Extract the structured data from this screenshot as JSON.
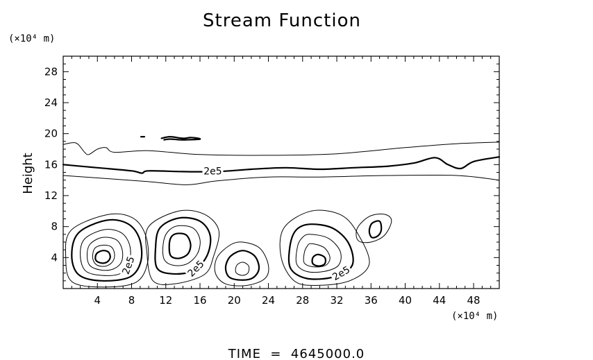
{
  "chart_data": {
    "type": "contour",
    "title": "Stream Function",
    "ylabel": "Height",
    "y_unit": "(×10⁴ m)",
    "x_unit": "(×10⁴ m)",
    "xlim": [
      0,
      51
    ],
    "ylim": [
      0,
      30
    ],
    "x_ticks": [
      4,
      8,
      12,
      16,
      20,
      24,
      28,
      32,
      36,
      40,
      44,
      48
    ],
    "y_ticks": [
      4,
      8,
      12,
      16,
      20,
      24,
      28
    ],
    "contour_label": "2e5",
    "footer": "TIME  =  4645000.0",
    "contours": [
      {
        "id": "upper-thin",
        "weight": "thin",
        "closed": false,
        "points": [
          [
            0,
            18.6
          ],
          [
            1.5,
            18.8
          ],
          [
            2.5,
            17.6
          ],
          [
            3,
            17.3
          ],
          [
            4,
            18
          ],
          [
            5,
            18.2
          ],
          [
            6,
            17.6
          ],
          [
            10,
            17.8
          ],
          [
            16,
            17.3
          ],
          [
            24,
            17.2
          ],
          [
            32,
            17.4
          ],
          [
            40,
            18.2
          ],
          [
            46,
            18.7
          ],
          [
            51,
            18.9
          ]
        ]
      },
      {
        "id": "main-thick",
        "weight": "thick",
        "closed": false,
        "points": [
          [
            0,
            16
          ],
          [
            4,
            15.6
          ],
          [
            8,
            15.2
          ],
          [
            9.2,
            14.9
          ],
          [
            10,
            15.2
          ],
          [
            14,
            15.1
          ],
          [
            18,
            15.1
          ],
          [
            22,
            15.4
          ],
          [
            26,
            15.6
          ],
          [
            30,
            15.4
          ],
          [
            34,
            15.6
          ],
          [
            38,
            15.8
          ],
          [
            41,
            16.2
          ],
          [
            43.5,
            16.9
          ],
          [
            45,
            16
          ],
          [
            46.5,
            15.5
          ],
          [
            48,
            16.4
          ],
          [
            51,
            17
          ]
        ]
      },
      {
        "id": "lower-thin",
        "weight": "thin",
        "closed": false,
        "points": [
          [
            0,
            14.6
          ],
          [
            5,
            14.2
          ],
          [
            10,
            13.8
          ],
          [
            14.5,
            13.4
          ],
          [
            18,
            13.9
          ],
          [
            24,
            14.4
          ],
          [
            30,
            14.4
          ],
          [
            38,
            14.6
          ],
          [
            46,
            14.6
          ],
          [
            51,
            14
          ]
        ]
      },
      {
        "id": "patch-20",
        "weight": "thick",
        "closed": false,
        "points": [
          [
            11.5,
            19.4
          ],
          [
            12.5,
            19.6
          ],
          [
            14,
            19.4
          ],
          [
            15,
            19.5
          ],
          [
            16,
            19.3
          ],
          [
            14,
            19.2
          ],
          [
            12.5,
            19.3
          ],
          [
            11.8,
            19.2
          ]
        ]
      },
      {
        "id": "dot-20",
        "weight": "thick",
        "closed": false,
        "points": [
          [
            9.1,
            19.6
          ],
          [
            9.5,
            19.6
          ]
        ]
      },
      {
        "id": "e1-1",
        "weight": "thin",
        "closed": true,
        "points": [
          [
            5,
            9.5
          ],
          [
            8,
            9.2
          ],
          [
            9.6,
            7
          ],
          [
            9.9,
            3.5
          ],
          [
            8.5,
            0.8
          ],
          [
            4.5,
            0.2
          ],
          [
            1,
            0.9
          ],
          [
            0.3,
            4
          ],
          [
            0.9,
            7.5
          ]
        ]
      },
      {
        "id": "e1-2",
        "weight": "thick",
        "closed": true,
        "points": [
          [
            5,
            8.8
          ],
          [
            7.5,
            8.4
          ],
          [
            8.9,
            6.5
          ],
          [
            9.1,
            3.6
          ],
          [
            7.8,
            1.5
          ],
          [
            4.5,
            1
          ],
          [
            1.8,
            1.8
          ],
          [
            1,
            4.3
          ],
          [
            1.8,
            7.2
          ]
        ]
      },
      {
        "id": "e1-3",
        "weight": "thin",
        "closed": true,
        "points": [
          [
            4.8,
            7.6
          ],
          [
            6.8,
            7.2
          ],
          [
            7.8,
            5.5
          ],
          [
            7.7,
            3.2
          ],
          [
            6.6,
            1.9
          ],
          [
            4.5,
            1.7
          ],
          [
            2.6,
            2.3
          ],
          [
            2,
            4.3
          ],
          [
            2.5,
            6.4
          ]
        ]
      },
      {
        "id": "e1-4",
        "weight": "thin",
        "closed": true,
        "points": [
          [
            4.6,
            6.6
          ],
          [
            6.2,
            6.3
          ],
          [
            6.9,
            5
          ],
          [
            6.8,
            3.4
          ],
          [
            5.8,
            2.5
          ],
          [
            4.4,
            2.4
          ],
          [
            3.1,
            3
          ],
          [
            2.8,
            4.5
          ],
          [
            3.2,
            5.8
          ]
        ]
      },
      {
        "id": "e1-5",
        "weight": "thin",
        "closed": true,
        "points": [
          [
            4.6,
            5.6
          ],
          [
            5.6,
            5.4
          ],
          [
            6,
            4.5
          ],
          [
            5.8,
            3.5
          ],
          [
            5,
            2.9
          ],
          [
            4,
            3
          ],
          [
            3.5,
            3.7
          ],
          [
            3.5,
            4.7
          ],
          [
            3.8,
            5.3
          ]
        ]
      },
      {
        "id": "e1-6",
        "weight": "thick",
        "closed": true,
        "points": [
          [
            4.6,
            4.9
          ],
          [
            5.3,
            4.7
          ],
          [
            5.5,
            4
          ],
          [
            5.1,
            3.4
          ],
          [
            4.4,
            3.3
          ],
          [
            3.8,
            3.7
          ],
          [
            3.9,
            4.5
          ]
        ]
      },
      {
        "id": "e2-1",
        "weight": "thin",
        "closed": true,
        "points": [
          [
            13.5,
            10
          ],
          [
            16.5,
            9.6
          ],
          [
            18.2,
            7.5
          ],
          [
            17.6,
            4.2
          ],
          [
            16.5,
            1.8
          ],
          [
            13,
            0.6
          ],
          [
            10.5,
            1
          ],
          [
            9.8,
            4.5
          ],
          [
            10,
            8
          ]
        ]
      },
      {
        "id": "e2-2",
        "weight": "thick",
        "closed": true,
        "points": [
          [
            13.5,
            9.1
          ],
          [
            16,
            8.7
          ],
          [
            17.2,
            6.8
          ],
          [
            16.8,
            4.2
          ],
          [
            15.2,
            2.3
          ],
          [
            12.8,
            1.9
          ],
          [
            11,
            2.6
          ],
          [
            10.8,
            5.2
          ],
          [
            11.3,
            7.8
          ]
        ]
      },
      {
        "id": "e2-3",
        "weight": "thin",
        "closed": true,
        "points": [
          [
            13.4,
            8.1
          ],
          [
            15.2,
            7.8
          ],
          [
            16,
            6.3
          ],
          [
            15.7,
            4.5
          ],
          [
            14.5,
            3.2
          ],
          [
            12.9,
            3
          ],
          [
            11.8,
            3.8
          ],
          [
            11.7,
            5.8
          ],
          [
            12.2,
            7.3
          ]
        ]
      },
      {
        "id": "e2-4",
        "weight": "thick",
        "closed": true,
        "points": [
          [
            13.3,
            7.1
          ],
          [
            14.4,
            6.9
          ],
          [
            14.9,
            5.7
          ],
          [
            14.6,
            4.5
          ],
          [
            13.6,
            3.9
          ],
          [
            12.6,
            4.2
          ],
          [
            12.4,
            5.4
          ],
          [
            12.6,
            6.6
          ]
        ]
      },
      {
        "id": "e3-1",
        "weight": "thin",
        "closed": true,
        "points": [
          [
            21,
            6
          ],
          [
            23,
            5.2
          ],
          [
            24,
            3
          ],
          [
            23.6,
            1.3
          ],
          [
            21.5,
            0.4
          ],
          [
            19,
            0.6
          ],
          [
            17.8,
            2
          ],
          [
            18,
            4
          ],
          [
            19.5,
            5.6
          ]
        ]
      },
      {
        "id": "e3-2",
        "weight": "thick",
        "closed": true,
        "points": [
          [
            21,
            4.9
          ],
          [
            22.4,
            4.2
          ],
          [
            22.9,
            2.6
          ],
          [
            22.2,
            1.4
          ],
          [
            20.8,
            1.1
          ],
          [
            19.4,
            1.5
          ],
          [
            19,
            2.8
          ],
          [
            19.6,
            4.2
          ]
        ]
      },
      {
        "id": "e3-3",
        "weight": "thin",
        "closed": true,
        "points": [
          [
            21,
            3.4
          ],
          [
            21.7,
            2.9
          ],
          [
            21.6,
            2
          ],
          [
            20.9,
            1.7
          ],
          [
            20.2,
            2.1
          ],
          [
            20.3,
            3
          ]
        ]
      },
      {
        "id": "e4-1",
        "weight": "thin",
        "closed": true,
        "points": [
          [
            29,
            10
          ],
          [
            32.5,
            9.5
          ],
          [
            34.5,
            7
          ],
          [
            35.8,
            3.2
          ],
          [
            33.5,
            1
          ],
          [
            29.5,
            0.4
          ],
          [
            27,
            1
          ],
          [
            25.5,
            4
          ],
          [
            25.8,
            7.8
          ]
        ]
      },
      {
        "id": "e4-2",
        "weight": "thick",
        "closed": true,
        "points": [
          [
            28.8,
            8.3
          ],
          [
            31.5,
            7.8
          ],
          [
            33.4,
            5.8
          ],
          [
            33.8,
            3
          ],
          [
            31.6,
            1.5
          ],
          [
            28.5,
            1.3
          ],
          [
            26.6,
            2.6
          ],
          [
            26.5,
            5.3
          ],
          [
            27.2,
            7.5
          ]
        ]
      },
      {
        "id": "e4-3",
        "weight": "thin",
        "closed": true,
        "points": [
          [
            28.8,
            7
          ],
          [
            31,
            6.5
          ],
          [
            32.4,
            4.8
          ],
          [
            32.2,
            3
          ],
          [
            30.5,
            2.2
          ],
          [
            28.5,
            2.2
          ],
          [
            27.3,
            3.2
          ],
          [
            27.4,
            5.4
          ],
          [
            27.9,
            6.5
          ]
        ]
      },
      {
        "id": "e4-4",
        "weight": "thin",
        "closed": true,
        "points": [
          [
            29,
            5.8
          ],
          [
            30.5,
            5.3
          ],
          [
            31.2,
            4
          ],
          [
            30.7,
            3
          ],
          [
            29.3,
            2.8
          ],
          [
            28.2,
            3.3
          ],
          [
            28.2,
            4.6
          ],
          [
            28.5,
            5.4
          ]
        ]
      },
      {
        "id": "e4-5",
        "weight": "thick",
        "closed": true,
        "points": [
          [
            29.8,
            4.4
          ],
          [
            30.6,
            4
          ],
          [
            30.6,
            3.2
          ],
          [
            29.9,
            2.9
          ],
          [
            29.2,
            3.2
          ],
          [
            29.2,
            4
          ]
        ]
      },
      {
        "id": "e5-1",
        "weight": "thin",
        "closed": true,
        "points": [
          [
            37.5,
            9.6
          ],
          [
            38.4,
            8.8
          ],
          [
            37.6,
            6.9
          ],
          [
            36,
            6
          ],
          [
            34.5,
            6.2
          ],
          [
            34.4,
            7.8
          ],
          [
            35.8,
            9.3
          ]
        ]
      },
      {
        "id": "e5-2",
        "weight": "thick",
        "closed": true,
        "points": [
          [
            37,
            8.7
          ],
          [
            37.2,
            7.6
          ],
          [
            36.8,
            6.8
          ],
          [
            36.1,
            6.6
          ],
          [
            35.8,
            7.4
          ],
          [
            36.1,
            8.4
          ]
        ]
      }
    ],
    "contour_labels": [
      {
        "text": "2e5",
        "x": 17.5,
        "y": 15.2,
        "angle": 0
      },
      {
        "text": "2e5",
        "x": 7.6,
        "y": 3.0,
        "angle": -70
      },
      {
        "text": "2e5",
        "x": 15.5,
        "y": 2.6,
        "angle": -45
      },
      {
        "text": "2e5",
        "x": 32.5,
        "y": 2.0,
        "angle": -30
      }
    ]
  }
}
